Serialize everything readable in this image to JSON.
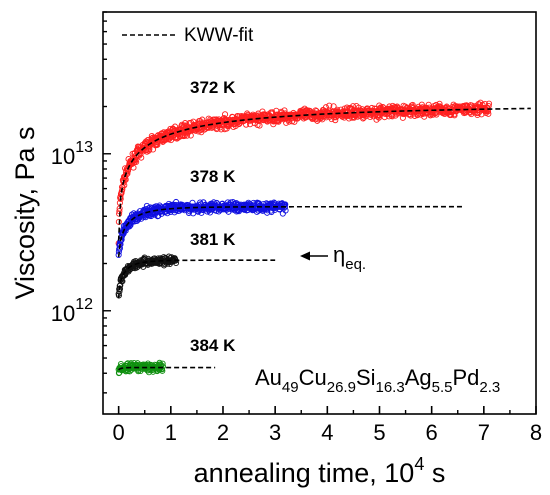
{
  "chart_data": {
    "type": "scatter",
    "xlabel": "annealing time, 10",
    "xlabel_sup": "4",
    "xlabel_suffix": " s",
    "ylabel": "Viscosity, Pa s",
    "xlim": [
      -0.3,
      8
    ],
    "ylim": [
      220000000000.0,
      80000000000000.0
    ],
    "y_scale": "log",
    "x_ticks": [
      "0",
      "1",
      "2",
      "3",
      "4",
      "5",
      "6",
      "7",
      "8"
    ],
    "y_ticks": [
      {
        "base": "10",
        "exp": "12",
        "value": 1000000000000.0
      },
      {
        "base": "10",
        "exp": "13",
        "value": 10000000000000.0
      }
    ],
    "legend": {
      "entry": "KWW-fit",
      "placement": "top-left"
    },
    "composition": {
      "parts": [
        {
          "el": "Au",
          "sub": "49"
        },
        {
          "el": "Cu",
          "sub": "26.9"
        },
        {
          "el": "Si",
          "sub": "16.3"
        },
        {
          "el": "Ag",
          "sub": "5.5"
        },
        {
          "el": "Pd",
          "sub": "2.3"
        }
      ]
    },
    "equilibrium_label": {
      "symbol": "η",
      "sub": "eq."
    },
    "series": [
      {
        "name": "372 K",
        "color": "#ff2020",
        "t_end": 7.1,
        "eta0": 2800000000000.0,
        "eta_eq": 20500000000000.0,
        "tau": 1.2,
        "beta": 0.55,
        "fit_end": 7.9,
        "noise": 0.035
      },
      {
        "name": "378 K",
        "color": "#1010e0",
        "t_end": 3.2,
        "eta0": 2200000000000.0,
        "eta_eq": 4600000000000.0,
        "tau": 0.22,
        "beta": 0.7,
        "fit_end": 6.6,
        "noise": 0.03
      },
      {
        "name": "381 K",
        "color": "#111111",
        "t_end": 1.1,
        "eta0": 1200000000000.0,
        "eta_eq": 2100000000000.0,
        "tau": 0.12,
        "beta": 0.7,
        "fit_end": 3.0,
        "noise": 0.025
      },
      {
        "name": "384 K",
        "color": "#109010",
        "t_end": 0.85,
        "eta0": 420000000000.0,
        "eta_eq": 435000000000.0,
        "tau": 0.05,
        "beta": 0.8,
        "fit_end": 1.85,
        "noise": 0.025
      }
    ]
  }
}
